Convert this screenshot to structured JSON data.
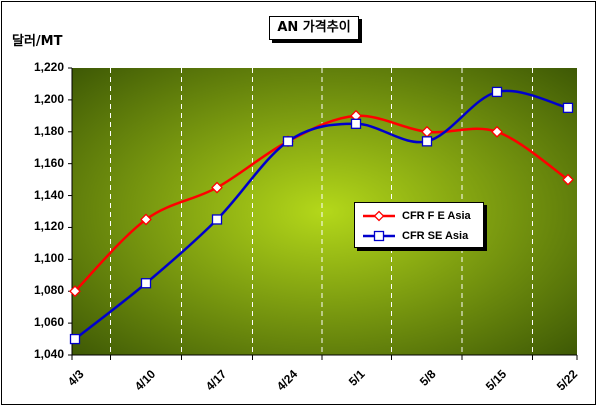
{
  "chart_data": {
    "type": "line",
    "title": "AN 가격추이",
    "ylabel": "달러/MT",
    "categories": [
      "4/3",
      "4/10",
      "4/17",
      "4/24",
      "5/1",
      "5/8",
      "5/15",
      "5/22"
    ],
    "ylim": [
      1040,
      1220
    ],
    "yticks": [
      "1,040",
      "1,060",
      "1,080",
      "1,100",
      "1,120",
      "1,140",
      "1,160",
      "1,180",
      "1,200",
      "1,220"
    ],
    "grid": "vertical-dashed",
    "legend_position": "center-right",
    "series": [
      {
        "name": "CFR F E Asia",
        "values": [
          1080,
          1125,
          1145,
          1174,
          1190,
          1180,
          1180,
          1150
        ],
        "color": "#ff0000",
        "marker": "diamond"
      },
      {
        "name": "CFR SE Asia",
        "values": [
          1050,
          1085,
          1125,
          1174,
          1185,
          1174,
          1205,
          1195
        ],
        "color": "#0000cc",
        "marker": "square"
      }
    ]
  },
  "colors": {
    "plot_bg_center": "#b4d81a",
    "plot_bg_edge": "#3f5a05"
  }
}
